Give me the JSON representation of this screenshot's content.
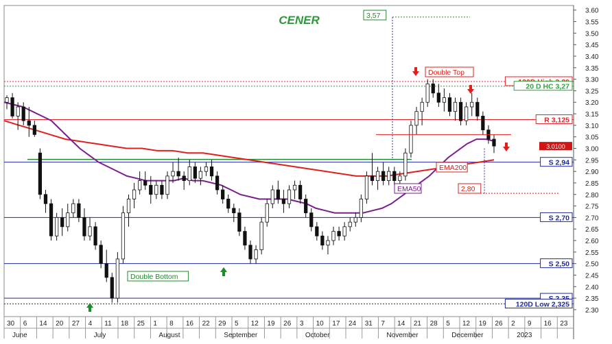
{
  "chart_data": {
    "type": "candlestick",
    "title": "CENER",
    "ylim": [
      2.27,
      3.62
    ],
    "y_ticks": [
      "3.60",
      "3.55",
      "3.50",
      "3.45",
      "3.40",
      "3.35",
      "3.30",
      "3.25",
      "3.20",
      "3.15",
      "3.10",
      "3.05",
      "3.00",
      "2.95",
      "2.90",
      "2.85",
      "2.80",
      "2.75",
      "2.70",
      "2.65",
      "2.60",
      "2.55",
      "2.50",
      "2.45",
      "2.40",
      "2.35",
      "2.30"
    ],
    "x_day_labels": [
      "30",
      "6",
      "14",
      "20",
      "27",
      "4",
      "11",
      "18",
      "25",
      "1",
      "8",
      "16",
      "22",
      "29",
      "5",
      "12",
      "19",
      "26",
      "3",
      "10",
      "17",
      "24",
      "31",
      "7",
      "14",
      "21",
      "28",
      "5",
      "12",
      "19",
      "26",
      "2",
      "9",
      "16",
      "23"
    ],
    "x_month_labels": [
      "June",
      "July",
      "August",
      "September",
      "October",
      "November",
      "December",
      "2023"
    ],
    "last_price_label": "3.0100",
    "horizontal_levels": [
      {
        "label": "120D High 3,29",
        "value": 3.29,
        "color": "#e8202a"
      },
      {
        "label": "20 D HC 3,27",
        "value": 3.27,
        "color": "#27a83a"
      },
      {
        "label": "R 3,125",
        "value": 3.125,
        "color": "#e8202a"
      },
      {
        "label": "S 2,94",
        "value": 2.94,
        "color": "#1f2a9c"
      },
      {
        "label": "S 2,70",
        "value": 2.7,
        "color": "#1f2a9c"
      },
      {
        "label": "S 2,50",
        "value": 2.5,
        "color": "#1f2a9c"
      },
      {
        "label": "S 2,35",
        "value": 2.35,
        "color": "#1f2a9c"
      },
      {
        "label": "120D Low 2,325",
        "value": 2.325,
        "color": "#1f2a9c"
      }
    ],
    "annotations": {
      "double_top": "Double Top",
      "double_bottom": "Double Bottom",
      "ema200": "EMA200",
      "ema50": "EMA50",
      "target_high": "3,57",
      "target_low": "2,80"
    },
    "candles": [
      [
        3.2,
        3.23,
        3.17,
        3.22
      ],
      [
        3.22,
        3.24,
        3.13,
        3.14
      ],
      [
        3.14,
        3.2,
        3.08,
        3.18
      ],
      [
        3.18,
        3.2,
        3.1,
        3.12
      ],
      [
        3.12,
        3.18,
        3.05,
        3.1
      ],
      [
        3.1,
        3.12,
        3.05,
        3.06
      ],
      [
        2.98,
        3.0,
        2.78,
        2.8
      ],
      [
        2.8,
        2.82,
        2.72,
        2.76
      ],
      [
        2.76,
        2.78,
        2.6,
        2.62
      ],
      [
        2.62,
        2.72,
        2.6,
        2.7
      ],
      [
        2.7,
        2.74,
        2.62,
        2.66
      ],
      [
        2.66,
        2.76,
        2.64,
        2.72
      ],
      [
        2.72,
        2.78,
        2.7,
        2.76
      ],
      [
        2.76,
        2.78,
        2.68,
        2.7
      ],
      [
        2.7,
        2.74,
        2.6,
        2.62
      ],
      [
        2.62,
        2.7,
        2.6,
        2.66
      ],
      [
        2.66,
        2.68,
        2.56,
        2.58
      ],
      [
        2.58,
        2.6,
        2.48,
        2.5
      ],
      [
        2.5,
        2.56,
        2.42,
        2.44
      ],
      [
        2.44,
        2.46,
        2.33,
        2.35
      ],
      [
        2.35,
        2.55,
        2.33,
        2.52
      ],
      [
        2.52,
        2.75,
        2.5,
        2.72
      ],
      [
        2.72,
        2.8,
        2.66,
        2.78
      ],
      [
        2.78,
        2.85,
        2.74,
        2.82
      ],
      [
        2.82,
        2.9,
        2.8,
        2.86
      ],
      [
        2.86,
        2.9,
        2.82,
        2.84
      ],
      [
        2.84,
        2.88,
        2.76,
        2.8
      ],
      [
        2.8,
        2.86,
        2.78,
        2.84
      ],
      [
        2.84,
        2.86,
        2.78,
        2.8
      ],
      [
        2.8,
        2.9,
        2.78,
        2.88
      ],
      [
        2.88,
        2.94,
        2.85,
        2.9
      ],
      [
        2.9,
        2.96,
        2.86,
        2.88
      ],
      [
        2.88,
        2.9,
        2.82,
        2.86
      ],
      [
        2.86,
        2.95,
        2.84,
        2.92
      ],
      [
        2.92,
        2.94,
        2.85,
        2.87
      ],
      [
        2.87,
        2.92,
        2.84,
        2.9
      ],
      [
        2.9,
        2.94,
        2.88,
        2.92
      ],
      [
        2.92,
        2.95,
        2.86,
        2.88
      ],
      [
        2.88,
        2.9,
        2.8,
        2.82
      ],
      [
        2.82,
        2.84,
        2.76,
        2.78
      ],
      [
        2.78,
        2.8,
        2.72,
        2.74
      ],
      [
        2.74,
        2.76,
        2.68,
        2.72
      ],
      [
        2.72,
        2.74,
        2.62,
        2.64
      ],
      [
        2.64,
        2.66,
        2.56,
        2.58
      ],
      [
        2.58,
        2.6,
        2.5,
        2.52
      ],
      [
        2.52,
        2.58,
        2.5,
        2.56
      ],
      [
        2.56,
        2.7,
        2.54,
        2.68
      ],
      [
        2.68,
        2.78,
        2.66,
        2.76
      ],
      [
        2.76,
        2.84,
        2.74,
        2.82
      ],
      [
        2.82,
        2.86,
        2.76,
        2.78
      ],
      [
        2.78,
        2.82,
        2.72,
        2.76
      ],
      [
        2.76,
        2.84,
        2.74,
        2.82
      ],
      [
        2.82,
        2.86,
        2.78,
        2.84
      ],
      [
        2.84,
        2.86,
        2.76,
        2.78
      ],
      [
        2.78,
        2.8,
        2.7,
        2.72
      ],
      [
        2.72,
        2.74,
        2.64,
        2.66
      ],
      [
        2.66,
        2.68,
        2.6,
        2.62
      ],
      [
        2.62,
        2.64,
        2.56,
        2.58
      ],
      [
        2.58,
        2.62,
        2.54,
        2.6
      ],
      [
        2.6,
        2.66,
        2.58,
        2.64
      ],
      [
        2.64,
        2.66,
        2.6,
        2.62
      ],
      [
        2.62,
        2.68,
        2.6,
        2.66
      ],
      [
        2.66,
        2.7,
        2.64,
        2.68
      ],
      [
        2.68,
        2.72,
        2.66,
        2.7
      ],
      [
        2.7,
        2.8,
        2.68,
        2.78
      ],
      [
        2.78,
        2.9,
        2.76,
        2.88
      ],
      [
        2.88,
        2.98,
        2.84,
        2.86
      ],
      [
        2.86,
        2.92,
        2.82,
        2.9
      ],
      [
        2.9,
        2.94,
        2.84,
        2.86
      ],
      [
        2.86,
        2.92,
        2.84,
        2.9
      ],
      [
        2.9,
        2.92,
        2.84,
        2.86
      ],
      [
        2.86,
        2.9,
        2.82,
        2.88
      ],
      [
        2.88,
        3.0,
        2.86,
        2.98
      ],
      [
        2.98,
        3.12,
        2.96,
        3.1
      ],
      [
        3.1,
        3.18,
        3.06,
        3.16
      ],
      [
        3.16,
        3.22,
        3.1,
        3.2
      ],
      [
        3.2,
        3.3,
        3.18,
        3.28
      ],
      [
        3.28,
        3.3,
        3.22,
        3.24
      ],
      [
        3.24,
        3.28,
        3.18,
        3.2
      ],
      [
        3.2,
        3.26,
        3.16,
        3.22
      ],
      [
        3.22,
        3.24,
        3.14,
        3.16
      ],
      [
        3.16,
        3.22,
        3.12,
        3.2
      ],
      [
        3.2,
        3.22,
        3.1,
        3.12
      ],
      [
        3.12,
        3.2,
        3.1,
        3.18
      ],
      [
        3.18,
        3.24,
        3.14,
        3.2
      ],
      [
        3.2,
        3.22,
        3.12,
        3.14
      ],
      [
        3.14,
        3.16,
        3.06,
        3.08
      ],
      [
        3.08,
        3.1,
        3.02,
        3.04
      ],
      [
        3.04,
        3.06,
        2.98,
        3.01
      ]
    ],
    "ema50": [
      3.2,
      3.19,
      3.18,
      3.16,
      3.14,
      3.12,
      3.08,
      3.04,
      3.0,
      2.97,
      2.94,
      2.92,
      2.9,
      2.88,
      2.87,
      2.86,
      2.86,
      2.86,
      2.86,
      2.87,
      2.86,
      2.86,
      2.85,
      2.84,
      2.82,
      2.8,
      2.79,
      2.78,
      2.78,
      2.78,
      2.78,
      2.77,
      2.76,
      2.74,
      2.73,
      2.72,
      2.72,
      2.72,
      2.72,
      2.73,
      2.74,
      2.76,
      2.79,
      2.82,
      2.85,
      2.88,
      2.92,
      2.96,
      2.99,
      3.02,
      3.04,
      3.04,
      3.03
    ],
    "ema200": [
      3.12,
      3.1,
      3.08,
      3.06,
      3.04,
      3.03,
      3.02,
      3.01,
      3.0,
      3.0,
      2.99,
      2.99,
      2.98,
      2.98,
      2.97,
      2.96,
      2.95,
      2.94,
      2.93,
      2.92,
      2.91,
      2.9,
      2.89,
      2.88,
      2.88,
      2.88,
      2.89,
      2.9,
      2.91,
      2.92,
      2.93,
      2.94,
      2.95
    ]
  }
}
